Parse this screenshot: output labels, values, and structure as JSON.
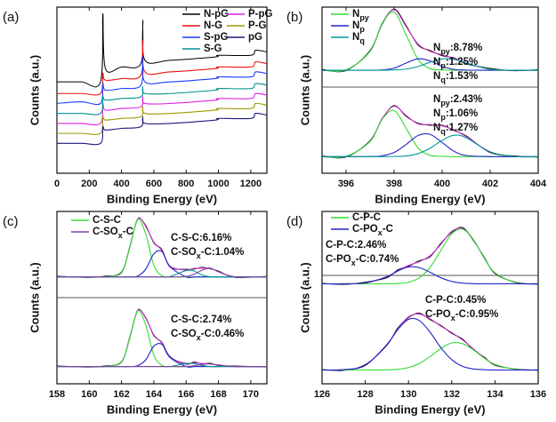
{
  "chart_data": [
    {
      "type": "line",
      "panel_label": "(a)",
      "xlabel": "Binding Energy (eV)",
      "ylabel": "Counts (a.u.)",
      "xlim": [
        0,
        1300
      ],
      "xticks": [
        0,
        200,
        400,
        600,
        800,
        1000,
        1200
      ],
      "ylim": [
        0,
        100
      ],
      "x": [
        0,
        150,
        270,
        284,
        300,
        400,
        520,
        532,
        545,
        700,
        980,
        1000,
        1200,
        1230,
        1300
      ],
      "series": [
        {
          "name": "N-pG",
          "color": "#000000",
          "values": [
            55,
            55,
            55,
            96,
            63,
            64,
            66,
            92,
            68,
            68,
            70,
            71,
            71,
            74,
            73
          ]
        },
        {
          "name": "P-pG",
          "color": "#e020e0",
          "values": [
            30,
            30,
            30,
            42,
            38,
            39,
            40,
            46,
            42,
            42,
            44,
            45,
            45,
            48,
            47
          ]
        },
        {
          "name": "N-G",
          "color": "#ee1111",
          "values": [
            48,
            48,
            48,
            60,
            56,
            57,
            59,
            80,
            61,
            61,
            63,
            64,
            64,
            67,
            66
          ]
        },
        {
          "name": "P-G",
          "color": "#999900",
          "values": [
            24,
            24,
            24,
            34,
            32,
            33,
            34,
            40,
            36,
            36,
            38,
            39,
            39,
            42,
            41
          ]
        },
        {
          "name": "S-pG",
          "color": "#1a3cff",
          "values": [
            42,
            43,
            42,
            54,
            50,
            51,
            53,
            70,
            55,
            55,
            57,
            58,
            58,
            61,
            60
          ]
        },
        {
          "name": "pG",
          "color": "#1a1a80",
          "values": [
            18,
            18,
            18,
            28,
            26,
            27,
            28,
            34,
            30,
            30,
            32,
            33,
            33,
            36,
            35
          ]
        },
        {
          "name": "S-G",
          "color": "#009090",
          "values": [
            36,
            36,
            36,
            46,
            44,
            45,
            46,
            52,
            48,
            48,
            50,
            51,
            51,
            54,
            53
          ]
        }
      ]
    },
    {
      "type": "line",
      "panel_label": "(b)",
      "xlabel": "Binding Energy (eV)",
      "ylabel": "Counts (a.u.)",
      "xlim": [
        395,
        404
      ],
      "xticks": [
        396,
        398,
        400,
        402,
        404
      ],
      "ylim": [
        0,
        100
      ],
      "x": [
        395,
        396,
        397,
        397.5,
        398,
        398.5,
        399,
        399.5,
        400,
        400.5,
        401,
        402,
        403,
        404
      ],
      "series": [
        {
          "color": "#000000",
          "values": [
            62.5,
            61.8,
            73.9,
            89.6,
            98.8,
            88.9,
            77.1,
            73.9,
            70.8,
            69.4,
            65.9,
            63.1,
            61.7,
            62.3
          ]
        },
        {
          "color": "#cc33cc",
          "values": [
            62,
            62.2,
            73.4,
            90.2,
            98.5,
            88.3,
            77.7,
            73.4,
            71.3,
            69,
            66.4,
            62.6,
            62,
            62
          ]
        },
        {
          "name": [
            "N",
            "py"
          ],
          "color": "#33dd33",
          "values": [
            62,
            62.2,
            73.4,
            90,
            97,
            83.3,
            68.5,
            63,
            62.2,
            62,
            62,
            62,
            62,
            62
          ]
        },
        {
          "name": [
            "N",
            "p"
          ],
          "color": "#2222cc",
          "values": [
            62,
            62,
            62,
            62.2,
            63.3,
            66.3,
            68.9,
            67.6,
            64.3,
            62.5,
            62.1,
            62,
            62,
            62
          ]
        },
        {
          "name": [
            "N",
            "q"
          ],
          "color": "#009999",
          "values": [
            62,
            62,
            62,
            62,
            62.2,
            62.7,
            64.3,
            66.8,
            68.8,
            68.5,
            66.3,
            62.6,
            62,
            62
          ]
        },
        {
          "color": "#000000",
          "values": [
            10.4,
            9.8,
            19.6,
            32.5,
            40.7,
            34.3,
            30.1,
            28.9,
            28.9,
            25.7,
            22.5,
            12.5,
            10.4,
            9.7
          ]
        },
        {
          "color": "#cc33cc",
          "values": [
            10,
            10.2,
            19.2,
            32.9,
            40.3,
            34.8,
            29.7,
            29.3,
            28.5,
            26.1,
            22.1,
            12.9,
            10.1,
            10
          ]
        },
        {
          "color": "#33dd33",
          "values": [
            10,
            10.2,
            19.1,
            32.4,
            37.7,
            27.1,
            15.2,
            10.8,
            10.2,
            10,
            10,
            10,
            10,
            10
          ]
        },
        {
          "color": "#2222cc",
          "values": [
            10,
            10,
            10.1,
            10.5,
            12.5,
            17.3,
            22.7,
            23.4,
            18.5,
            13.2,
            10.7,
            10,
            10,
            10
          ]
        },
        {
          "color": "#009999",
          "values": [
            10,
            10,
            10,
            10,
            10.1,
            10.4,
            11.8,
            15.1,
            19.8,
            22.9,
            21.4,
            12.9,
            10.1,
            10
          ]
        }
      ],
      "annotations": [
        {
          "lines": [
            [
              "N",
              "py",
              ":8.78%"
            ],
            [
              "N",
              "p",
              ":1.25%"
            ],
            [
              "N",
              "q",
              ":1.53%"
            ]
          ]
        },
        {
          "lines": [
            [
              "N",
              "py",
              ":2.43%"
            ],
            [
              "N",
              "p",
              ":1.06%"
            ],
            [
              "N",
              "q",
              ":1.27%"
            ]
          ]
        }
      ]
    },
    {
      "type": "line",
      "panel_label": "(c)",
      "xlabel": "Binding Energy (eV)",
      "ylabel": "Counts (a.u.)",
      "xlim": [
        158,
        171
      ],
      "xticks": [
        158,
        160,
        162,
        164,
        166,
        168,
        170
      ],
      "ylim": [
        0,
        100
      ],
      "x": [
        158,
        160,
        161,
        162,
        162.5,
        163,
        163.5,
        164,
        164.5,
        165,
        166,
        166.5,
        167,
        167.5,
        168,
        169,
        171
      ],
      "series": [
        {
          "color": "#000000",
          "values": [
            62.4,
            61.7,
            62.5,
            64.6,
            79.2,
            95.4,
            91.8,
            81.8,
            77.9,
            67.8,
            66.4,
            66.6,
            67.5,
            66.7,
            65.4,
            61.8,
            62.3
          ]
        },
        {
          "color": "#cc33cc",
          "values": [
            62,
            62,
            62.1,
            65,
            78.7,
            95.8,
            91.3,
            82.2,
            77.4,
            68.2,
            66,
            67,
            67.1,
            67.1,
            65,
            62.1,
            62
          ]
        },
        {
          "name": [
            "C-S-C"
          ],
          "color": "#33dd33",
          "values": [
            62,
            62,
            62.1,
            65,
            78.7,
            95.3,
            86.8,
            68.8,
            62.7,
            62,
            62,
            62,
            62,
            62,
            62,
            62,
            62
          ]
        },
        {
          "color": "#2222cc",
          "values": [
            62,
            62,
            62,
            62,
            62,
            62.5,
            66.5,
            75.4,
            76.7,
            68,
            62,
            62,
            62,
            62,
            62,
            62,
            62
          ]
        },
        {
          "color": "#009999",
          "values": [
            62,
            62,
            62,
            62,
            62,
            62,
            62,
            62,
            62,
            62.2,
            65.7,
            65.4,
            63.1,
            62.1,
            62,
            62,
            62
          ]
        },
        {
          "name": [
            "C-SO",
            "x",
            "-C"
          ],
          "color": "#8040a0",
          "values": [
            62,
            62,
            62,
            62,
            62,
            62,
            62,
            62,
            62,
            62,
            62.3,
            63.6,
            66,
            67,
            65,
            62.1,
            62
          ]
        },
        {
          "color": "#000000",
          "values": [
            10.3,
            9.7,
            10.4,
            12.6,
            26.7,
            42.4,
            38.4,
            28,
            24,
            15.7,
            11.4,
            12.6,
            11.5,
            11.9,
            10.6,
            10.3,
            9.8
          ]
        },
        {
          "color": "#cc33cc",
          "values": [
            10,
            10,
            10.1,
            12.9,
            26.2,
            42.8,
            38,
            28.4,
            23.6,
            15.3,
            11.8,
            12.2,
            11.8,
            11.5,
            10.9,
            10,
            10
          ]
        },
        {
          "color": "#33dd33",
          "values": [
            10,
            10,
            10.1,
            12.9,
            26.2,
            42.3,
            34.1,
            16.6,
            10.7,
            10,
            10,
            10,
            10,
            10,
            10,
            10,
            10
          ]
        },
        {
          "color": "#2222cc",
          "values": [
            10,
            10,
            10,
            10,
            10,
            10.5,
            13.9,
            21.8,
            22.9,
            15.3,
            10,
            10,
            10,
            10,
            10,
            10,
            10
          ]
        },
        {
          "color": "#009999",
          "values": [
            10,
            10,
            10,
            10,
            10,
            10,
            10,
            10,
            10,
            10,
            11.8,
            11.7,
            10.6,
            10,
            10,
            10,
            10
          ]
        },
        {
          "color": "#8040a0",
          "values": [
            10,
            10,
            10,
            10,
            10,
            10,
            10,
            10,
            10,
            10,
            10,
            10.5,
            11.2,
            11.5,
            10.9,
            10,
            10
          ]
        }
      ],
      "annotations": [
        {
          "lines": [
            [
              "C-S-C:6.16%"
            ],
            [
              "C-SO",
              "x",
              "-C:1.04%"
            ]
          ]
        },
        {
          "lines": [
            [
              "C-S-C:2.74%"
            ],
            [
              "C-SO",
              "x",
              "-C:0.46%"
            ]
          ]
        }
      ]
    },
    {
      "type": "line",
      "panel_label": "(d)",
      "xlabel": "Binding Energy (eV)",
      "ylabel": "Counts (a.u.)",
      "xlim": [
        126,
        136
      ],
      "xticks": [
        126,
        128,
        130,
        132,
        134,
        136
      ],
      "ylim": [
        0,
        100
      ],
      "x": [
        126,
        127,
        128,
        129,
        129.5,
        130,
        130.5,
        131,
        131.5,
        132,
        132.5,
        133,
        133.5,
        134,
        135,
        136
      ],
      "series": [
        {
          "color": "#000000",
          "values": [
            58.3,
            57.7,
            58.9,
            61.6,
            66.1,
            68.2,
            71.4,
            73.8,
            81.5,
            87.9,
            90.6,
            83.2,
            73.5,
            64,
            58.8,
            57.8
          ]
        },
        {
          "color": "#cc33cc",
          "values": [
            58,
            58,
            58.5,
            62.1,
            65.6,
            68.7,
            70.9,
            74.3,
            81,
            88.4,
            90.1,
            83.7,
            73,
            64.4,
            58.5,
            58
          ]
        },
        {
          "name": [
            "C-P-C"
          ],
          "color": "#33dd33",
          "values": [
            58,
            58,
            58,
            58,
            58.2,
            58.9,
            61.5,
            67.6,
            77.5,
            87,
            89.7,
            83.6,
            73,
            64.4,
            58.5,
            58
          ]
        },
        {
          "name": [
            "C-PO",
            "x",
            "-C"
          ],
          "color": "#2222cc",
          "values": [
            58,
            58,
            58.5,
            62.1,
            65.4,
            67.8,
            67.4,
            64.7,
            61.5,
            59.4,
            58.4,
            58.1,
            58,
            58,
            58,
            58
          ]
        },
        {
          "color": "#000000",
          "values": [
            8.3,
            7.8,
            11.1,
            22.4,
            32.3,
            38.4,
            41,
            37.2,
            33.8,
            29.3,
            25.9,
            19.8,
            15.5,
            10.8,
            8.5,
            7.8
          ]
        },
        {
          "color": "#cc33cc",
          "values": [
            8,
            8.2,
            10.7,
            22.8,
            31.8,
            38.8,
            40.5,
            37.7,
            33.4,
            29.7,
            25.4,
            20.3,
            15.1,
            11.2,
            8.3,
            8
          ]
        },
        {
          "color": "#33dd33",
          "values": [
            8,
            8,
            8,
            8.1,
            8.4,
            9.4,
            11.8,
            15.8,
            20.5,
            23.7,
            23.3,
            19.7,
            14.9,
            11.2,
            8.3,
            8
          ]
        },
        {
          "color": "#2222cc",
          "values": [
            8,
            8.2,
            10.7,
            22.7,
            31.4,
            37.4,
            36.7,
            29.9,
            20.9,
            14,
            10.1,
            8.6,
            8.2,
            8,
            8,
            8
          ]
        }
      ],
      "annotations": [
        {
          "lines": [
            [
              "C-P-C:2.46%"
            ],
            [
              "C-PO",
              "x",
              "-C:0.74%"
            ]
          ]
        },
        {
          "lines": [
            [
              "C-P-C:0.45%"
            ],
            [
              "C-PO",
              "x",
              "-C:0.95%"
            ]
          ]
        }
      ]
    }
  ]
}
